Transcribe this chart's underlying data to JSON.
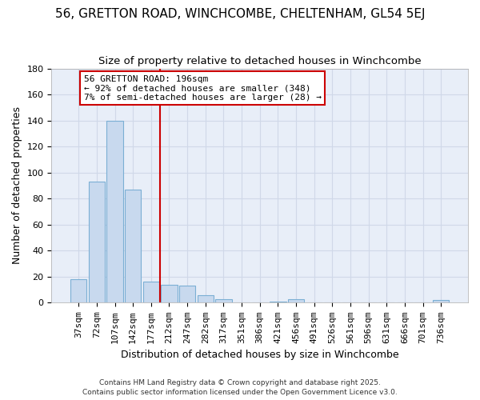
{
  "title": "56, GRETTON ROAD, WINCHCOMBE, CHELTENHAM, GL54 5EJ",
  "subtitle": "Size of property relative to detached houses in Winchcombe",
  "xlabel": "Distribution of detached houses by size in Winchcombe",
  "ylabel": "Number of detached properties",
  "bar_labels": [
    "37sqm",
    "72sqm",
    "107sqm",
    "142sqm",
    "177sqm",
    "212sqm",
    "247sqm",
    "282sqm",
    "317sqm",
    "351sqm",
    "386sqm",
    "421sqm",
    "456sqm",
    "491sqm",
    "526sqm",
    "561sqm",
    "596sqm",
    "631sqm",
    "666sqm",
    "701sqm",
    "736sqm"
  ],
  "bar_values": [
    18,
    93,
    140,
    87,
    16,
    14,
    13,
    6,
    3,
    0,
    0,
    1,
    3,
    0,
    0,
    0,
    0,
    0,
    0,
    0,
    2
  ],
  "bar_color": "#c8d9ee",
  "bar_edge_color": "#7bafd4",
  "vline_x_idx": 5,
  "vline_color": "#cc0000",
  "ylim": [
    0,
    180
  ],
  "yticks": [
    0,
    20,
    40,
    60,
    80,
    100,
    120,
    140,
    160,
    180
  ],
  "annotation_box_text_line1": "56 GRETTON ROAD: 196sqm",
  "annotation_box_text_line2": "← 92% of detached houses are smaller (348)",
  "annotation_box_text_line3": "7% of semi-detached houses are larger (28) →",
  "annotation_border_color": "#cc0000",
  "grid_color": "#d0d8e8",
  "background_color": "#ffffff",
  "plot_bg_color": "#e8eef8",
  "footer_line1": "Contains HM Land Registry data © Crown copyright and database right 2025.",
  "footer_line2": "Contains public sector information licensed under the Open Government Licence v3.0.",
  "title_fontsize": 11,
  "subtitle_fontsize": 9.5,
  "axis_label_fontsize": 9,
  "tick_fontsize": 8,
  "footer_fontsize": 6.5
}
